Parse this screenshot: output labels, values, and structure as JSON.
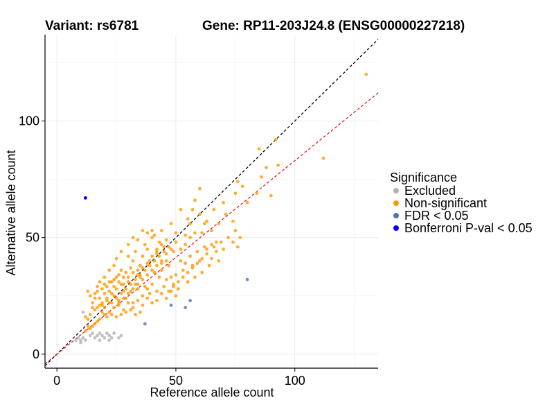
{
  "chart_data": {
    "type": "scatter",
    "title_variant": "Variant: rs6781",
    "title_gene": "Gene: RP11-203J24.8 (ENSG00000227218)",
    "xlabel": "Reference allele count",
    "ylabel": "Alternative allele count",
    "xlim": [
      -5,
      135
    ],
    "ylim": [
      -6,
      137
    ],
    "x_ticks": [
      0,
      50,
      100
    ],
    "y_ticks": [
      0,
      50,
      100
    ],
    "grid": true,
    "reference_lines": [
      {
        "name": "identity",
        "slope": 1.0,
        "intercept": 0,
        "color": "#000000",
        "style": "dashed"
      },
      {
        "name": "fitted",
        "slope": 0.83,
        "intercept": 0,
        "color": "#e41a1c",
        "style": "dashed"
      }
    ],
    "legend": {
      "title": "Significance",
      "position": "right",
      "entries": [
        {
          "label": "Excluded",
          "color": "#b3b3b3"
        },
        {
          "label": "Non-significant",
          "color": "#ff9900"
        },
        {
          "label": "FDR < 0.05",
          "color": "#4a77b0"
        },
        {
          "label": "Bonferroni P-val < 0.05",
          "color": "#0000ff"
        }
      ]
    },
    "series": [
      {
        "name": "Excluded",
        "color": "#b3b3b3",
        "points": [
          [
            8,
            6
          ],
          [
            9,
            7
          ],
          [
            10,
            5
          ],
          [
            10,
            6
          ],
          [
            11,
            7
          ],
          [
            12,
            6
          ],
          [
            14,
            8
          ],
          [
            15,
            9
          ],
          [
            16,
            7
          ],
          [
            17,
            8
          ],
          [
            18,
            6
          ],
          [
            18,
            9
          ],
          [
            19,
            8
          ],
          [
            20,
            7
          ],
          [
            21,
            9
          ],
          [
            22,
            8
          ],
          [
            22,
            6
          ],
          [
            23,
            7
          ],
          [
            24,
            9
          ],
          [
            26,
            7
          ],
          [
            27,
            8
          ],
          [
            11,
            18
          ]
        ]
      },
      {
        "name": "Non-significant",
        "color": "#ff9900",
        "points": [
          [
            130,
            120
          ],
          [
            112,
            84
          ],
          [
            93,
            81
          ],
          [
            92,
            92
          ],
          [
            85,
            88
          ],
          [
            88,
            80
          ],
          [
            86,
            76
          ],
          [
            90,
            68
          ],
          [
            84,
            69
          ],
          [
            80,
            65
          ],
          [
            78,
            72
          ],
          [
            76,
            74
          ],
          [
            75,
            69
          ],
          [
            74,
            57
          ],
          [
            71,
            60
          ],
          [
            68,
            56
          ],
          [
            70,
            65
          ],
          [
            66,
            62
          ],
          [
            67,
            48
          ],
          [
            65,
            53
          ],
          [
            63,
            57
          ],
          [
            61,
            52
          ],
          [
            60,
            71
          ],
          [
            62,
            56
          ],
          [
            58,
            66
          ],
          [
            60,
            60
          ],
          [
            57,
            62
          ],
          [
            56,
            56
          ],
          [
            55,
            58
          ],
          [
            54,
            51
          ],
          [
            52,
            62
          ],
          [
            50,
            52
          ],
          [
            48,
            56
          ],
          [
            49,
            44
          ],
          [
            46,
            40
          ],
          [
            45,
            46
          ],
          [
            44,
            53
          ],
          [
            43,
            48
          ],
          [
            42,
            44
          ],
          [
            41,
            51
          ],
          [
            40,
            50
          ],
          [
            39,
            40
          ],
          [
            38,
            45
          ],
          [
            37,
            47
          ],
          [
            36,
            42
          ],
          [
            35,
            38
          ],
          [
            34,
            36
          ],
          [
            33,
            44
          ],
          [
            32,
            40
          ],
          [
            31,
            37
          ],
          [
            30,
            42
          ],
          [
            29,
            35
          ],
          [
            28,
            33
          ],
          [
            27,
            30
          ],
          [
            26,
            34
          ],
          [
            25,
            28
          ],
          [
            24,
            32
          ],
          [
            23,
            26
          ],
          [
            22,
            27
          ],
          [
            21,
            24
          ],
          [
            20,
            26
          ],
          [
            19,
            22
          ],
          [
            18,
            24
          ],
          [
            17,
            20
          ],
          [
            16,
            19
          ],
          [
            15,
            20
          ],
          [
            14,
            17
          ],
          [
            13,
            15
          ],
          [
            12,
            16
          ],
          [
            13,
            27
          ],
          [
            14,
            25
          ],
          [
            15,
            22
          ],
          [
            16,
            24
          ],
          [
            17,
            27
          ],
          [
            18,
            21
          ],
          [
            19,
            28
          ],
          [
            20,
            20
          ],
          [
            21,
            29
          ],
          [
            22,
            22
          ],
          [
            23,
            31
          ],
          [
            24,
            25
          ],
          [
            25,
            33
          ],
          [
            26,
            23
          ],
          [
            27,
            36
          ],
          [
            28,
            27
          ],
          [
            29,
            24
          ],
          [
            30,
            31
          ],
          [
            31,
            27
          ],
          [
            32,
            22
          ],
          [
            33,
            30
          ],
          [
            34,
            28
          ],
          [
            35,
            33
          ],
          [
            36,
            25
          ],
          [
            37,
            29
          ],
          [
            38,
            34
          ],
          [
            39,
            26
          ],
          [
            40,
            30
          ],
          [
            41,
            35
          ],
          [
            42,
            27
          ],
          [
            43,
            33
          ],
          [
            44,
            36
          ],
          [
            45,
            29
          ],
          [
            46,
            32
          ],
          [
            47,
            38
          ],
          [
            48,
            33
          ],
          [
            49,
            30
          ],
          [
            50,
            34
          ],
          [
            51,
            28
          ],
          [
            52,
            40
          ],
          [
            53,
            36
          ],
          [
            54,
            39
          ],
          [
            55,
            31
          ],
          [
            56,
            42
          ],
          [
            57,
            38
          ],
          [
            58,
            33
          ],
          [
            59,
            44
          ],
          [
            60,
            40
          ],
          [
            61,
            35
          ],
          [
            62,
            46
          ],
          [
            63,
            43
          ],
          [
            64,
            38
          ],
          [
            65,
            41
          ],
          [
            66,
            46
          ],
          [
            67,
            44
          ],
          [
            68,
            40
          ],
          [
            69,
            48
          ],
          [
            70,
            45
          ],
          [
            72,
            50
          ],
          [
            74,
            48
          ],
          [
            75,
            53
          ],
          [
            76,
            46
          ],
          [
            77,
            50
          ],
          [
            18,
            15
          ],
          [
            20,
            17
          ],
          [
            22,
            18
          ],
          [
            24,
            20
          ],
          [
            26,
            21
          ],
          [
            28,
            19
          ],
          [
            30,
            22
          ],
          [
            32,
            20
          ],
          [
            34,
            23
          ],
          [
            36,
            21
          ],
          [
            38,
            24
          ],
          [
            40,
            22
          ],
          [
            42,
            23
          ],
          [
            44,
            26
          ],
          [
            46,
            24
          ],
          [
            48,
            27
          ],
          [
            50,
            25
          ],
          [
            35,
            18
          ],
          [
            33,
            17
          ],
          [
            31,
            19
          ],
          [
            29,
            18
          ],
          [
            27,
            17
          ],
          [
            25,
            16
          ],
          [
            23,
            17
          ],
          [
            21,
            16
          ],
          [
            19,
            18
          ],
          [
            17,
            14
          ],
          [
            16,
            13
          ],
          [
            15,
            12
          ],
          [
            14,
            11
          ],
          [
            13,
            12
          ],
          [
            12,
            10
          ],
          [
            25,
            41
          ],
          [
            27,
            44
          ],
          [
            30,
            47
          ],
          [
            32,
            50
          ],
          [
            34,
            49
          ],
          [
            36,
            53
          ],
          [
            38,
            52
          ],
          [
            40,
            53
          ],
          [
            42,
            43
          ],
          [
            44,
            39
          ],
          [
            24,
            38
          ],
          [
            22,
            36
          ],
          [
            20,
            33
          ],
          [
            18,
            31
          ],
          [
            17,
            29
          ],
          [
            16,
            26
          ],
          [
            26,
            22
          ],
          [
            28,
            24
          ],
          [
            30,
            26
          ],
          [
            32,
            28
          ],
          [
            34,
            30
          ],
          [
            36,
            32
          ],
          [
            38,
            28
          ],
          [
            40,
            36
          ],
          [
            42,
            38
          ],
          [
            44,
            40
          ],
          [
            46,
            43
          ],
          [
            48,
            45
          ],
          [
            50,
            48
          ],
          [
            52,
            45
          ],
          [
            54,
            47
          ],
          [
            56,
            50
          ],
          [
            58,
            52
          ],
          [
            19,
            21
          ],
          [
            21,
            23
          ],
          [
            23,
            22
          ],
          [
            25,
            24
          ],
          [
            27,
            26
          ],
          [
            29,
            28
          ],
          [
            31,
            30
          ],
          [
            33,
            32
          ],
          [
            35,
            34
          ],
          [
            37,
            36
          ],
          [
            39,
            38
          ],
          [
            41,
            40
          ],
          [
            43,
            42
          ],
          [
            45,
            44
          ],
          [
            47,
            46
          ],
          [
            20,
            30
          ],
          [
            22,
            31
          ],
          [
            24,
            29
          ],
          [
            26,
            31
          ],
          [
            28,
            30
          ],
          [
            30,
            33
          ],
          [
            32,
            35
          ],
          [
            34,
            34
          ],
          [
            36,
            37
          ],
          [
            38,
            39
          ],
          [
            40,
            42
          ],
          [
            42,
            45
          ],
          [
            44,
            47
          ],
          [
            46,
            49
          ],
          [
            47,
            27
          ],
          [
            49,
            29
          ],
          [
            51,
            31
          ],
          [
            53,
            33
          ],
          [
            55,
            35
          ],
          [
            57,
            37
          ],
          [
            59,
            39
          ],
          [
            61,
            41
          ],
          [
            63,
            45
          ],
          [
            65,
            47
          ]
        ]
      },
      {
        "name": "FDR < 0.05",
        "color": "#4a77b0",
        "points": [
          [
            80,
            32
          ],
          [
            56,
            23
          ],
          [
            54,
            20
          ],
          [
            48,
            21
          ],
          [
            37,
            13
          ]
        ]
      },
      {
        "name": "Bonferroni P-val < 0.05",
        "color": "#0000ff",
        "points": [
          [
            12,
            67
          ]
        ]
      }
    ]
  }
}
